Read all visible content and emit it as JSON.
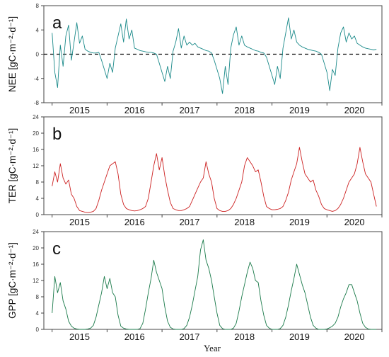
{
  "figure": {
    "xlabel": "Year"
  },
  "chart_data": [
    {
      "type": "line",
      "panel_letter": "a",
      "ylabel": "NEE [gC·m⁻²·d⁻¹]",
      "ylim": [
        -8,
        8
      ],
      "yticks": [
        -8,
        -4,
        0,
        4,
        8
      ],
      "ytick_labels": [
        "-8",
        "-4",
        "0",
        "4",
        "8"
      ],
      "xlim": [
        2014.85,
        2021.0
      ],
      "year_labels": [
        "2015",
        "2016",
        "2017",
        "2018",
        "2019",
        "2020"
      ],
      "zero_line": true,
      "color": "#1b8a8a",
      "series": [
        {
          "x": [
            2015.0,
            2015.05,
            2015.1,
            2015.15,
            2015.2,
            2015.25,
            2015.3,
            2015.35,
            2015.4,
            2015.45,
            2015.5,
            2015.55,
            2015.6,
            2015.65,
            2015.7,
            2015.75,
            2015.8,
            2015.85,
            2015.9,
            2015.95,
            2016.0,
            2016.05,
            2016.1,
            2016.15,
            2016.2,
            2016.25,
            2016.3,
            2016.35,
            2016.4,
            2016.45,
            2016.5,
            2016.55,
            2016.6,
            2016.65,
            2016.7,
            2016.75,
            2016.8,
            2016.85,
            2016.9,
            2016.95,
            2017.0,
            2017.05,
            2017.1,
            2017.15,
            2017.2,
            2017.25,
            2017.3,
            2017.35,
            2017.4,
            2017.45,
            2017.5,
            2017.55,
            2017.6,
            2017.65,
            2017.7,
            2017.75,
            2017.8,
            2017.85,
            2017.9,
            2017.95,
            2018.0,
            2018.05,
            2018.1,
            2018.15,
            2018.2,
            2018.25,
            2018.3,
            2018.35,
            2018.4,
            2018.45,
            2018.5,
            2018.55,
            2018.6,
            2018.65,
            2018.7,
            2018.75,
            2018.8,
            2018.85,
            2018.9,
            2018.95,
            2019.0,
            2019.05,
            2019.1,
            2019.15,
            2019.2,
            2019.25,
            2019.3,
            2019.35,
            2019.4,
            2019.45,
            2019.5,
            2019.55,
            2019.6,
            2019.65,
            2019.7,
            2019.75,
            2019.8,
            2019.85,
            2019.9,
            2019.95,
            2020.0,
            2020.05,
            2020.1,
            2020.15,
            2020.2,
            2020.25,
            2020.3,
            2020.35,
            2020.4,
            2020.45,
            2020.5,
            2020.55,
            2020.6,
            2020.65,
            2020.7,
            2020.75,
            2020.8,
            2020.85,
            2020.9
          ],
          "values": [
            3.5,
            -3.0,
            -5.5,
            1.5,
            -2.0,
            3.0,
            4.8,
            -1.0,
            2.0,
            5.2,
            1.8,
            3.0,
            0.8,
            0.5,
            0.3,
            0.2,
            0.2,
            0.3,
            -1.0,
            -2.5,
            -4.0,
            -1.5,
            -3.0,
            1.0,
            3.0,
            5.0,
            2.0,
            5.8,
            2.5,
            4.0,
            1.0,
            0.8,
            0.6,
            0.5,
            0.4,
            0.3,
            0.3,
            0.2,
            0.0,
            -1.5,
            -3.0,
            -4.5,
            -2.0,
            -4.0,
            0.5,
            2.0,
            4.2,
            1.0,
            3.0,
            1.5,
            2.0,
            1.5,
            1.8,
            1.2,
            1.0,
            0.8,
            0.6,
            0.5,
            0.2,
            -1.0,
            -2.5,
            -4.0,
            -6.5,
            -2.0,
            -5.0,
            1.0,
            3.2,
            4.5,
            1.5,
            3.0,
            1.5,
            1.2,
            1.0,
            0.8,
            0.6,
            0.5,
            0.3,
            0.2,
            -0.5,
            -2.0,
            -3.5,
            -5.0,
            -2.0,
            -4.0,
            1.0,
            3.5,
            6.0,
            2.5,
            4.0,
            2.0,
            1.5,
            1.2,
            1.0,
            0.8,
            0.7,
            0.6,
            0.5,
            0.3,
            0.0,
            -1.5,
            -3.0,
            -6.0,
            -2.5,
            -3.5,
            1.0,
            3.5,
            4.5,
            2.0,
            3.5,
            2.5,
            3.0,
            1.8,
            1.5,
            1.2,
            1.0,
            0.9,
            0.8,
            0.7,
            0.8
          ]
        }
      ]
    },
    {
      "type": "line",
      "panel_letter": "b",
      "ylabel": "TER [gC·m⁻²·d⁻¹]",
      "ylim": [
        0,
        24
      ],
      "yticks": [
        0,
        4,
        8,
        12,
        16,
        20,
        24
      ],
      "ytick_labels": [
        "0",
        "4",
        "8",
        "12",
        "16",
        "20",
        "24"
      ],
      "xlim": [
        2014.85,
        2021.0
      ],
      "year_labels": [
        "2015",
        "2016",
        "2017",
        "2018",
        "2019",
        "2020"
      ],
      "zero_line": false,
      "color": "#cc2020",
      "series": [
        {
          "x": [
            2015.0,
            2015.05,
            2015.1,
            2015.15,
            2015.2,
            2015.25,
            2015.3,
            2015.35,
            2015.4,
            2015.45,
            2015.5,
            2015.55,
            2015.6,
            2015.65,
            2015.7,
            2015.75,
            2015.8,
            2015.85,
            2015.9,
            2015.95,
            2016.0,
            2016.05,
            2016.1,
            2016.15,
            2016.2,
            2016.25,
            2016.3,
            2016.35,
            2016.4,
            2016.45,
            2016.5,
            2016.55,
            2016.6,
            2016.65,
            2016.7,
            2016.75,
            2016.8,
            2016.85,
            2016.9,
            2016.95,
            2017.0,
            2017.05,
            2017.1,
            2017.15,
            2017.2,
            2017.25,
            2017.3,
            2017.35,
            2017.4,
            2017.45,
            2017.5,
            2017.55,
            2017.6,
            2017.65,
            2017.7,
            2017.75,
            2017.8,
            2017.85,
            2017.9,
            2017.95,
            2018.0,
            2018.05,
            2018.1,
            2018.15,
            2018.2,
            2018.25,
            2018.3,
            2018.35,
            2018.4,
            2018.45,
            2018.5,
            2018.55,
            2018.6,
            2018.65,
            2018.7,
            2018.75,
            2018.8,
            2018.85,
            2018.9,
            2018.95,
            2019.0,
            2019.05,
            2019.1,
            2019.15,
            2019.2,
            2019.25,
            2019.3,
            2019.35,
            2019.4,
            2019.45,
            2019.5,
            2019.55,
            2019.6,
            2019.65,
            2019.7,
            2019.75,
            2019.8,
            2019.85,
            2019.9,
            2019.95,
            2020.0,
            2020.05,
            2020.1,
            2020.15,
            2020.2,
            2020.25,
            2020.3,
            2020.35,
            2020.4,
            2020.45,
            2020.5,
            2020.55,
            2020.6,
            2020.65,
            2020.7,
            2020.75,
            2020.8,
            2020.85,
            2020.9
          ],
          "values": [
            7.0,
            10.5,
            8.0,
            12.5,
            9.0,
            7.5,
            8.5,
            5.0,
            4.0,
            2.0,
            1.0,
            0.8,
            0.6,
            0.5,
            0.6,
            0.8,
            1.5,
            3.5,
            6.0,
            8.0,
            10.0,
            12.0,
            12.5,
            13.0,
            10.0,
            5.0,
            2.5,
            1.5,
            1.2,
            1.0,
            0.9,
            1.0,
            1.2,
            1.5,
            2.0,
            4.0,
            8.0,
            12.0,
            15.0,
            11.0,
            14.0,
            9.5,
            6.0,
            3.0,
            1.5,
            1.2,
            1.0,
            1.0,
            1.2,
            1.5,
            2.0,
            3.5,
            5.0,
            6.5,
            8.0,
            9.0,
            13.0,
            10.0,
            8.0,
            4.0,
            1.5,
            1.0,
            0.8,
            0.8,
            1.0,
            1.5,
            2.5,
            4.0,
            6.0,
            8.0,
            12.0,
            14.0,
            13.0,
            12.0,
            10.5,
            11.0,
            8.0,
            4.5,
            2.0,
            1.5,
            1.2,
            1.2,
            1.3,
            1.5,
            2.0,
            3.5,
            5.5,
            8.5,
            10.5,
            12.5,
            16.5,
            13.0,
            10.0,
            9.0,
            8.0,
            8.5,
            6.0,
            4.5,
            2.5,
            1.5,
            1.2,
            1.0,
            0.8,
            1.0,
            1.5,
            2.5,
            4.0,
            6.0,
            8.0,
            9.0,
            10.0,
            12.5,
            16.5,
            13.0,
            10.0,
            9.0,
            8.0,
            5.0,
            2.0
          ]
        }
      ]
    },
    {
      "type": "line",
      "panel_letter": "c",
      "ylabel": "GPP [gC·m⁻²·d⁻¹]",
      "ylim": [
        0,
        24
      ],
      "yticks": [
        0,
        4,
        8,
        12,
        16,
        20,
        24
      ],
      "ytick_labels": [
        "0",
        "4",
        "8",
        "12",
        "16",
        "20",
        "24"
      ],
      "xlim": [
        2014.85,
        2021.0
      ],
      "year_labels": [
        "2015",
        "2016",
        "2017",
        "2018",
        "2019",
        "2020"
      ],
      "zero_line": false,
      "color": "#1a7a4a",
      "series": [
        {
          "x": [
            2015.0,
            2015.05,
            2015.1,
            2015.15,
            2015.2,
            2015.25,
            2015.3,
            2015.35,
            2015.4,
            2015.45,
            2015.5,
            2015.55,
            2015.6,
            2015.65,
            2015.7,
            2015.75,
            2015.8,
            2015.85,
            2015.9,
            2015.95,
            2016.0,
            2016.05,
            2016.1,
            2016.15,
            2016.2,
            2016.25,
            2016.3,
            2016.35,
            2016.4,
            2016.45,
            2016.5,
            2016.55,
            2016.6,
            2016.65,
            2016.7,
            2016.75,
            2016.8,
            2016.85,
            2016.9,
            2016.95,
            2017.0,
            2017.05,
            2017.1,
            2017.15,
            2017.2,
            2017.25,
            2017.3,
            2017.35,
            2017.4,
            2017.45,
            2017.5,
            2017.55,
            2017.6,
            2017.65,
            2017.7,
            2017.75,
            2017.8,
            2017.85,
            2017.9,
            2017.95,
            2018.0,
            2018.05,
            2018.1,
            2018.15,
            2018.2,
            2018.25,
            2018.3,
            2018.35,
            2018.4,
            2018.45,
            2018.5,
            2018.55,
            2018.6,
            2018.65,
            2018.7,
            2018.75,
            2018.8,
            2018.85,
            2018.9,
            2018.95,
            2019.0,
            2019.05,
            2019.1,
            2019.15,
            2019.2,
            2019.25,
            2019.3,
            2019.35,
            2019.4,
            2019.45,
            2019.5,
            2019.55,
            2019.6,
            2019.65,
            2019.7,
            2019.75,
            2019.8,
            2019.85,
            2019.9,
            2019.95,
            2020.0,
            2020.05,
            2020.1,
            2020.15,
            2020.2,
            2020.25,
            2020.3,
            2020.35,
            2020.4,
            2020.45,
            2020.5,
            2020.55,
            2020.6,
            2020.65,
            2020.7,
            2020.75,
            2020.8,
            2020.85,
            2020.9
          ],
          "values": [
            4.0,
            13.0,
            9.0,
            11.5,
            7.0,
            5.0,
            2.0,
            0.8,
            0.3,
            0.1,
            0.0,
            0.0,
            0.0,
            0.1,
            0.3,
            1.0,
            3.0,
            6.0,
            9.0,
            13.0,
            10.0,
            12.5,
            9.0,
            8.0,
            3.5,
            0.8,
            0.3,
            0.1,
            0.0,
            0.0,
            0.0,
            0.0,
            0.2,
            1.5,
            5.0,
            9.0,
            12.5,
            17.0,
            14.0,
            12.0,
            10.0,
            5.5,
            2.0,
            0.5,
            0.1,
            0.0,
            0.0,
            0.0,
            0.2,
            1.0,
            3.0,
            6.0,
            9.5,
            13.0,
            19.5,
            22.0,
            17.0,
            15.0,
            12.0,
            8.0,
            4.0,
            1.0,
            0.2,
            0.0,
            0.0,
            0.0,
            0.3,
            1.5,
            4.5,
            8.0,
            11.0,
            14.0,
            16.5,
            15.0,
            12.0,
            11.5,
            7.0,
            3.5,
            1.0,
            0.3,
            0.0,
            0.0,
            0.0,
            0.2,
            1.0,
            3.0,
            6.0,
            9.5,
            12.5,
            16.0,
            13.5,
            11.0,
            9.0,
            6.0,
            3.0,
            1.0,
            0.3,
            0.0,
            0.0,
            0.0,
            0.1,
            0.4,
            0.8,
            1.5,
            3.0,
            5.5,
            7.5,
            9.0,
            11.0,
            11.0,
            9.0,
            7.0,
            4.0,
            1.5,
            0.5,
            0.1,
            0.0,
            0.0,
            0.0
          ]
        }
      ]
    }
  ]
}
